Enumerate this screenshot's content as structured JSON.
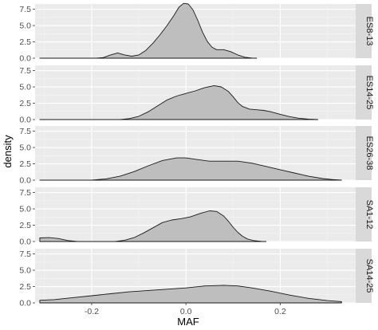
{
  "chart_data": {
    "type": "area",
    "xlabel": "MAF",
    "ylabel": "density",
    "xlim": [
      -0.32,
      0.36
    ],
    "ylim": [
      0,
      8.3
    ],
    "x_ticks": [
      -0.2,
      0.0,
      0.2
    ],
    "x_tick_labels": [
      "-0.2",
      "0.0",
      "0.2"
    ],
    "y_ticks": [
      0,
      2.5,
      5.0,
      7.5
    ],
    "y_tick_labels": [
      "0.0",
      "2.5",
      "5.0",
      "7.5"
    ],
    "fill_color": "#bebebe",
    "line_color": "#1a1a1a",
    "panel_background": "#ebebeb",
    "strip_background": "#d9d9d9",
    "grid": true,
    "facets": [
      {
        "label": "ES8-13",
        "points": [
          [
            -0.31,
            0
          ],
          [
            -0.19,
            0
          ],
          [
            -0.175,
            0.1
          ],
          [
            -0.16,
            0.5
          ],
          [
            -0.145,
            0.8
          ],
          [
            -0.13,
            0.5
          ],
          [
            -0.115,
            0.3
          ],
          [
            -0.1,
            0.5
          ],
          [
            -0.085,
            1.2
          ],
          [
            -0.07,
            2.3
          ],
          [
            -0.055,
            3.6
          ],
          [
            -0.04,
            5.0
          ],
          [
            -0.025,
            6.6
          ],
          [
            -0.015,
            7.8
          ],
          [
            -0.005,
            8.4
          ],
          [
            0.005,
            8.3
          ],
          [
            0.015,
            7.4
          ],
          [
            0.025,
            5.8
          ],
          [
            0.035,
            4.0
          ],
          [
            0.045,
            2.6
          ],
          [
            0.055,
            1.7
          ],
          [
            0.065,
            1.3
          ],
          [
            0.08,
            1.3
          ],
          [
            0.095,
            1.0
          ],
          [
            0.11,
            0.5
          ],
          [
            0.125,
            0.15
          ],
          [
            0.14,
            0.03
          ],
          [
            0.15,
            0
          ]
        ]
      },
      {
        "label": "ES14-25",
        "points": [
          [
            -0.31,
            0
          ],
          [
            -0.14,
            0
          ],
          [
            -0.12,
            0.15
          ],
          [
            -0.1,
            0.5
          ],
          [
            -0.08,
            1.2
          ],
          [
            -0.06,
            2.1
          ],
          [
            -0.04,
            3.0
          ],
          [
            -0.02,
            3.6
          ],
          [
            0.0,
            4.0
          ],
          [
            0.02,
            4.4
          ],
          [
            0.04,
            4.9
          ],
          [
            0.06,
            5.2
          ],
          [
            0.075,
            5.0
          ],
          [
            0.09,
            4.3
          ],
          [
            0.1,
            3.5
          ],
          [
            0.11,
            2.6
          ],
          [
            0.12,
            2.0
          ],
          [
            0.135,
            1.6
          ],
          [
            0.15,
            1.5
          ],
          [
            0.165,
            1.4
          ],
          [
            0.18,
            1.2
          ],
          [
            0.2,
            0.8
          ],
          [
            0.22,
            0.45
          ],
          [
            0.24,
            0.2
          ],
          [
            0.26,
            0.07
          ],
          [
            0.28,
            0
          ]
        ]
      },
      {
        "label": "ES26-38",
        "points": [
          [
            -0.31,
            0
          ],
          [
            -0.2,
            0
          ],
          [
            -0.17,
            0.2
          ],
          [
            -0.14,
            0.6
          ],
          [
            -0.11,
            1.3
          ],
          [
            -0.08,
            2.2
          ],
          [
            -0.05,
            3.0
          ],
          [
            -0.02,
            3.4
          ],
          [
            0.0,
            3.4
          ],
          [
            0.02,
            3.2
          ],
          [
            0.05,
            2.9
          ],
          [
            0.08,
            2.9
          ],
          [
            0.11,
            2.9
          ],
          [
            0.14,
            2.6
          ],
          [
            0.17,
            2.1
          ],
          [
            0.2,
            1.6
          ],
          [
            0.23,
            1.1
          ],
          [
            0.26,
            0.6
          ],
          [
            0.29,
            0.25
          ],
          [
            0.31,
            0.1
          ],
          [
            0.33,
            0
          ]
        ]
      },
      {
        "label": "SA1-12",
        "points": [
          [
            -0.31,
            0.55
          ],
          [
            -0.29,
            0.6
          ],
          [
            -0.27,
            0.45
          ],
          [
            -0.25,
            0.15
          ],
          [
            -0.23,
            0
          ],
          [
            -0.15,
            0
          ],
          [
            -0.13,
            0.2
          ],
          [
            -0.11,
            0.6
          ],
          [
            -0.09,
            1.3
          ],
          [
            -0.07,
            2.1
          ],
          [
            -0.05,
            2.9
          ],
          [
            -0.03,
            3.3
          ],
          [
            -0.01,
            3.5
          ],
          [
            0.01,
            3.8
          ],
          [
            0.03,
            4.3
          ],
          [
            0.05,
            4.7
          ],
          [
            0.065,
            4.6
          ],
          [
            0.08,
            3.9
          ],
          [
            0.09,
            3.1
          ],
          [
            0.1,
            2.2
          ],
          [
            0.11,
            1.4
          ],
          [
            0.12,
            0.8
          ],
          [
            0.13,
            0.4
          ],
          [
            0.145,
            0.12
          ],
          [
            0.16,
            0.03
          ],
          [
            0.17,
            0
          ]
        ]
      },
      {
        "label": "SA14-25",
        "points": [
          [
            -0.31,
            0.4
          ],
          [
            -0.28,
            0.5
          ],
          [
            -0.24,
            0.8
          ],
          [
            -0.2,
            1.1
          ],
          [
            -0.16,
            1.4
          ],
          [
            -0.12,
            1.7
          ],
          [
            -0.08,
            1.9
          ],
          [
            -0.04,
            2.1
          ],
          [
            0.0,
            2.3
          ],
          [
            0.04,
            2.6
          ],
          [
            0.08,
            2.7
          ],
          [
            0.11,
            2.6
          ],
          [
            0.14,
            2.3
          ],
          [
            0.18,
            1.8
          ],
          [
            0.22,
            1.2
          ],
          [
            0.26,
            0.7
          ],
          [
            0.3,
            0.35
          ],
          [
            0.33,
            0.2
          ]
        ]
      }
    ]
  }
}
